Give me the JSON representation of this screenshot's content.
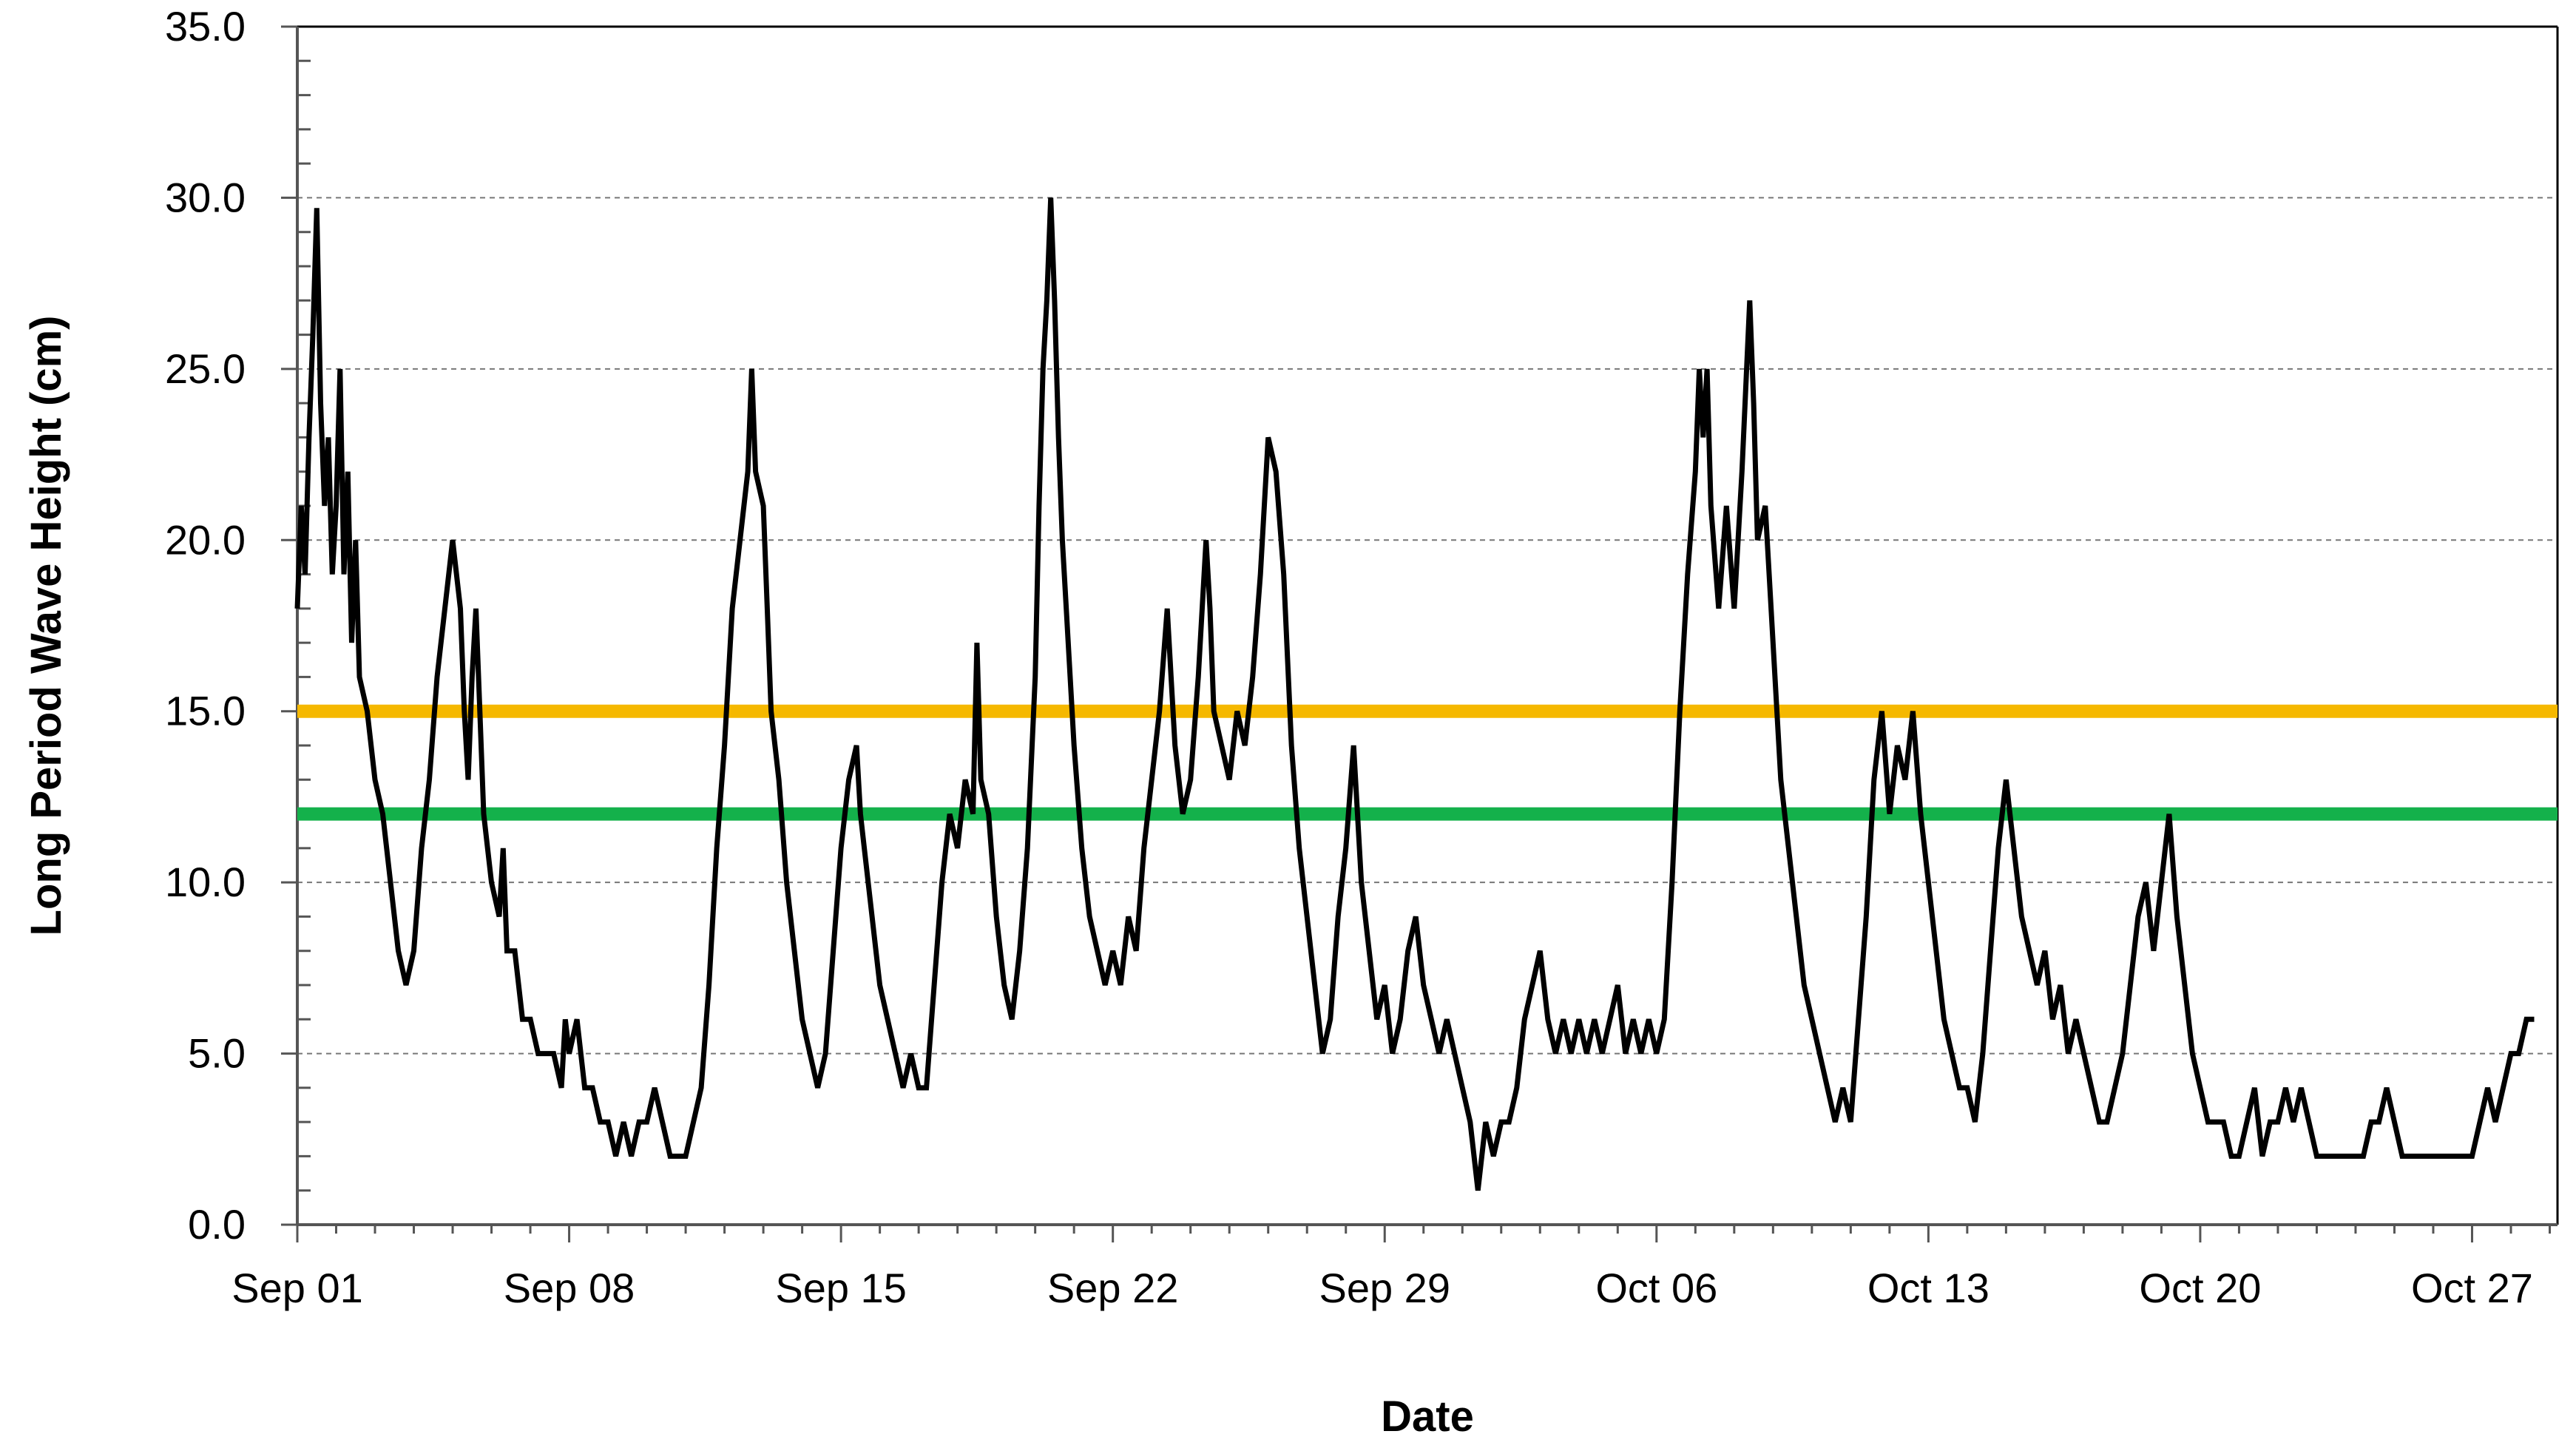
{
  "chart_data": {
    "type": "line",
    "title": "",
    "xlabel": "Date",
    "ylabel": "Long Period Wave Height (cm)",
    "x_range": [
      "2011-09-01",
      "2011-10-29"
    ],
    "xlim_days": [
      0,
      58.2
    ],
    "ylim": [
      0,
      35
    ],
    "y_major_step": 5,
    "y_minor_step": 1,
    "y_ticks": [
      "0.0",
      "5.0",
      "10.0",
      "15.0",
      "20.0",
      "25.0",
      "30.0",
      "35.0"
    ],
    "x_ticks": [
      {
        "label": "Sep 01",
        "day": 0
      },
      {
        "label": "Sep 08",
        "day": 7
      },
      {
        "label": "Sep 15",
        "day": 14
      },
      {
        "label": "Sep 22",
        "day": 21
      },
      {
        "label": "Sep 29",
        "day": 28
      },
      {
        "label": "Oct 06",
        "day": 35
      },
      {
        "label": "Oct 13",
        "day": 42
      },
      {
        "label": "Oct 20",
        "day": 49
      },
      {
        "label": "Oct 27",
        "day": 56
      }
    ],
    "grid": {
      "horizontal": true,
      "vertical": false,
      "style": "dashed"
    },
    "legend": "none",
    "threshold_lines": [
      {
        "value": 15,
        "color": "#F5B800"
      },
      {
        "value": 12,
        "color": "#14B14B"
      }
    ],
    "series": [
      {
        "color": "#000000",
        "points": [
          [
            0.0,
            18
          ],
          [
            0.1,
            21
          ],
          [
            0.2,
            19
          ],
          [
            0.3,
            23
          ],
          [
            0.4,
            26
          ],
          [
            0.5,
            29.7
          ],
          [
            0.6,
            24
          ],
          [
            0.7,
            21
          ],
          [
            0.8,
            23
          ],
          [
            0.9,
            19
          ],
          [
            1.0,
            21
          ],
          [
            1.1,
            25
          ],
          [
            1.2,
            19
          ],
          [
            1.3,
            22
          ],
          [
            1.4,
            17
          ],
          [
            1.5,
            20
          ],
          [
            1.6,
            16
          ],
          [
            1.8,
            15
          ],
          [
            2.0,
            13
          ],
          [
            2.2,
            12
          ],
          [
            2.4,
            10
          ],
          [
            2.6,
            8
          ],
          [
            2.8,
            7
          ],
          [
            3.0,
            8
          ],
          [
            3.2,
            11
          ],
          [
            3.4,
            13
          ],
          [
            3.6,
            16
          ],
          [
            3.8,
            18
          ],
          [
            4.0,
            20
          ],
          [
            4.2,
            18
          ],
          [
            4.3,
            15
          ],
          [
            4.4,
            13
          ],
          [
            4.5,
            16
          ],
          [
            4.6,
            18
          ],
          [
            4.7,
            15
          ],
          [
            4.8,
            12
          ],
          [
            5.0,
            10
          ],
          [
            5.2,
            9
          ],
          [
            5.3,
            11
          ],
          [
            5.4,
            8
          ],
          [
            5.6,
            8
          ],
          [
            5.8,
            6
          ],
          [
            6.0,
            6
          ],
          [
            6.2,
            5
          ],
          [
            6.6,
            5
          ],
          [
            6.8,
            4
          ],
          [
            6.9,
            6
          ],
          [
            7.0,
            5
          ],
          [
            7.2,
            6
          ],
          [
            7.4,
            4
          ],
          [
            7.6,
            4
          ],
          [
            7.8,
            3
          ],
          [
            8.0,
            3
          ],
          [
            8.2,
            2
          ],
          [
            8.4,
            3
          ],
          [
            8.6,
            2
          ],
          [
            8.8,
            3
          ],
          [
            9.0,
            3
          ],
          [
            9.2,
            4
          ],
          [
            9.4,
            3
          ],
          [
            9.6,
            2
          ],
          [
            10.0,
            2
          ],
          [
            10.2,
            3
          ],
          [
            10.4,
            4
          ],
          [
            10.6,
            7
          ],
          [
            10.8,
            11
          ],
          [
            11.0,
            14
          ],
          [
            11.2,
            18
          ],
          [
            11.4,
            20
          ],
          [
            11.6,
            22
          ],
          [
            11.7,
            25
          ],
          [
            11.8,
            22
          ],
          [
            12.0,
            21
          ],
          [
            12.1,
            18
          ],
          [
            12.2,
            15
          ],
          [
            12.4,
            13
          ],
          [
            12.6,
            10
          ],
          [
            12.8,
            8
          ],
          [
            13.0,
            6
          ],
          [
            13.2,
            5
          ],
          [
            13.4,
            4
          ],
          [
            13.6,
            5
          ],
          [
            13.8,
            8
          ],
          [
            14.0,
            11
          ],
          [
            14.2,
            13
          ],
          [
            14.4,
            14
          ],
          [
            14.5,
            12
          ],
          [
            14.6,
            11
          ],
          [
            14.8,
            9
          ],
          [
            15.0,
            7
          ],
          [
            15.2,
            6
          ],
          [
            15.4,
            5
          ],
          [
            15.6,
            4
          ],
          [
            15.8,
            5
          ],
          [
            16.0,
            4
          ],
          [
            16.2,
            4
          ],
          [
            16.4,
            7
          ],
          [
            16.6,
            10
          ],
          [
            16.8,
            12
          ],
          [
            17.0,
            11
          ],
          [
            17.2,
            13
          ],
          [
            17.4,
            12
          ],
          [
            17.5,
            17
          ],
          [
            17.6,
            13
          ],
          [
            17.8,
            12
          ],
          [
            18.0,
            9
          ],
          [
            18.2,
            7
          ],
          [
            18.4,
            6
          ],
          [
            18.6,
            8
          ],
          [
            18.8,
            11
          ],
          [
            19.0,
            16
          ],
          [
            19.1,
            21
          ],
          [
            19.2,
            25
          ],
          [
            19.3,
            27
          ],
          [
            19.4,
            30
          ],
          [
            19.5,
            27
          ],
          [
            19.6,
            23
          ],
          [
            19.7,
            20
          ],
          [
            19.8,
            18
          ],
          [
            20.0,
            14
          ],
          [
            20.2,
            11
          ],
          [
            20.4,
            9
          ],
          [
            20.6,
            8
          ],
          [
            20.8,
            7
          ],
          [
            21.0,
            8
          ],
          [
            21.2,
            7
          ],
          [
            21.4,
            9
          ],
          [
            21.6,
            8
          ],
          [
            21.8,
            11
          ],
          [
            22.0,
            13
          ],
          [
            22.2,
            15
          ],
          [
            22.4,
            18
          ],
          [
            22.5,
            16
          ],
          [
            22.6,
            14
          ],
          [
            22.8,
            12
          ],
          [
            23.0,
            13
          ],
          [
            23.2,
            16
          ],
          [
            23.4,
            20
          ],
          [
            23.5,
            18
          ],
          [
            23.6,
            15
          ],
          [
            23.8,
            14
          ],
          [
            24.0,
            13
          ],
          [
            24.2,
            15
          ],
          [
            24.4,
            14
          ],
          [
            24.6,
            16
          ],
          [
            24.8,
            19
          ],
          [
            25.0,
            23
          ],
          [
            25.2,
            22
          ],
          [
            25.4,
            19
          ],
          [
            25.6,
            14
          ],
          [
            25.8,
            11
          ],
          [
            26.0,
            9
          ],
          [
            26.2,
            7
          ],
          [
            26.4,
            5
          ],
          [
            26.6,
            6
          ],
          [
            26.8,
            9
          ],
          [
            27.0,
            11
          ],
          [
            27.2,
            14
          ],
          [
            27.4,
            10
          ],
          [
            27.6,
            8
          ],
          [
            27.8,
            6
          ],
          [
            28.0,
            7
          ],
          [
            28.2,
            5
          ],
          [
            28.4,
            6
          ],
          [
            28.6,
            8
          ],
          [
            28.8,
            9
          ],
          [
            29.0,
            7
          ],
          [
            29.2,
            6
          ],
          [
            29.4,
            5
          ],
          [
            29.6,
            6
          ],
          [
            29.8,
            5
          ],
          [
            30.0,
            4
          ],
          [
            30.2,
            3
          ],
          [
            30.4,
            1
          ],
          [
            30.6,
            3
          ],
          [
            30.8,
            2
          ],
          [
            31.0,
            3
          ],
          [
            31.2,
            3
          ],
          [
            31.4,
            4
          ],
          [
            31.6,
            6
          ],
          [
            31.8,
            7
          ],
          [
            32.0,
            8
          ],
          [
            32.2,
            6
          ],
          [
            32.4,
            5
          ],
          [
            32.6,
            6
          ],
          [
            32.8,
            5
          ],
          [
            33.0,
            6
          ],
          [
            33.2,
            5
          ],
          [
            33.4,
            6
          ],
          [
            33.6,
            5
          ],
          [
            33.8,
            6
          ],
          [
            34.0,
            7
          ],
          [
            34.2,
            5
          ],
          [
            34.4,
            6
          ],
          [
            34.6,
            5
          ],
          [
            34.8,
            6
          ],
          [
            35.0,
            5
          ],
          [
            35.2,
            6
          ],
          [
            35.4,
            10
          ],
          [
            35.6,
            15
          ],
          [
            35.8,
            19
          ],
          [
            36.0,
            22
          ],
          [
            36.1,
            25
          ],
          [
            36.2,
            23
          ],
          [
            36.3,
            25
          ],
          [
            36.4,
            21
          ],
          [
            36.6,
            18
          ],
          [
            36.8,
            21
          ],
          [
            37.0,
            18
          ],
          [
            37.2,
            22
          ],
          [
            37.4,
            27
          ],
          [
            37.5,
            24
          ],
          [
            37.6,
            20
          ],
          [
            37.8,
            21
          ],
          [
            38.0,
            17
          ],
          [
            38.2,
            13
          ],
          [
            38.4,
            11
          ],
          [
            38.6,
            9
          ],
          [
            38.8,
            7
          ],
          [
            39.0,
            6
          ],
          [
            39.2,
            5
          ],
          [
            39.4,
            4
          ],
          [
            39.6,
            3
          ],
          [
            39.8,
            4
          ],
          [
            40.0,
            3
          ],
          [
            40.2,
            6
          ],
          [
            40.4,
            9
          ],
          [
            40.6,
            13
          ],
          [
            40.8,
            15
          ],
          [
            41.0,
            12
          ],
          [
            41.2,
            14
          ],
          [
            41.4,
            13
          ],
          [
            41.6,
            15
          ],
          [
            41.8,
            12
          ],
          [
            42.0,
            10
          ],
          [
            42.2,
            8
          ],
          [
            42.4,
            6
          ],
          [
            42.6,
            5
          ],
          [
            42.8,
            4
          ],
          [
            43.0,
            4
          ],
          [
            43.2,
            3
          ],
          [
            43.4,
            5
          ],
          [
            43.6,
            8
          ],
          [
            43.8,
            11
          ],
          [
            44.0,
            13
          ],
          [
            44.2,
            11
          ],
          [
            44.4,
            9
          ],
          [
            44.6,
            8
          ],
          [
            44.8,
            7
          ],
          [
            45.0,
            8
          ],
          [
            45.2,
            6
          ],
          [
            45.4,
            7
          ],
          [
            45.6,
            5
          ],
          [
            45.8,
            6
          ],
          [
            46.0,
            5
          ],
          [
            46.2,
            4
          ],
          [
            46.4,
            3
          ],
          [
            46.6,
            3
          ],
          [
            46.8,
            4
          ],
          [
            47.0,
            5
          ],
          [
            47.2,
            7
          ],
          [
            47.4,
            9
          ],
          [
            47.6,
            10
          ],
          [
            47.8,
            8
          ],
          [
            48.0,
            10
          ],
          [
            48.2,
            12
          ],
          [
            48.4,
            9
          ],
          [
            48.6,
            7
          ],
          [
            48.8,
            5
          ],
          [
            49.0,
            4
          ],
          [
            49.2,
            3
          ],
          [
            49.4,
            3
          ],
          [
            49.6,
            3
          ],
          [
            49.8,
            2
          ],
          [
            50.0,
            2
          ],
          [
            50.2,
            3
          ],
          [
            50.4,
            4
          ],
          [
            50.6,
            2
          ],
          [
            50.8,
            3
          ],
          [
            51.0,
            3
          ],
          [
            51.2,
            4
          ],
          [
            51.4,
            3
          ],
          [
            51.6,
            4
          ],
          [
            51.8,
            3
          ],
          [
            52.0,
            2
          ],
          [
            52.4,
            2
          ],
          [
            52.8,
            2
          ],
          [
            53.2,
            2
          ],
          [
            53.4,
            3
          ],
          [
            53.6,
            3
          ],
          [
            53.8,
            4
          ],
          [
            54.0,
            3
          ],
          [
            54.2,
            2
          ],
          [
            55.0,
            2
          ],
          [
            55.6,
            2
          ],
          [
            56.0,
            2
          ],
          [
            56.2,
            3
          ],
          [
            56.4,
            4
          ],
          [
            56.6,
            3
          ],
          [
            56.8,
            4
          ],
          [
            57.0,
            5
          ],
          [
            57.2,
            5
          ],
          [
            57.4,
            6
          ],
          [
            57.6,
            6
          ]
        ]
      }
    ]
  }
}
